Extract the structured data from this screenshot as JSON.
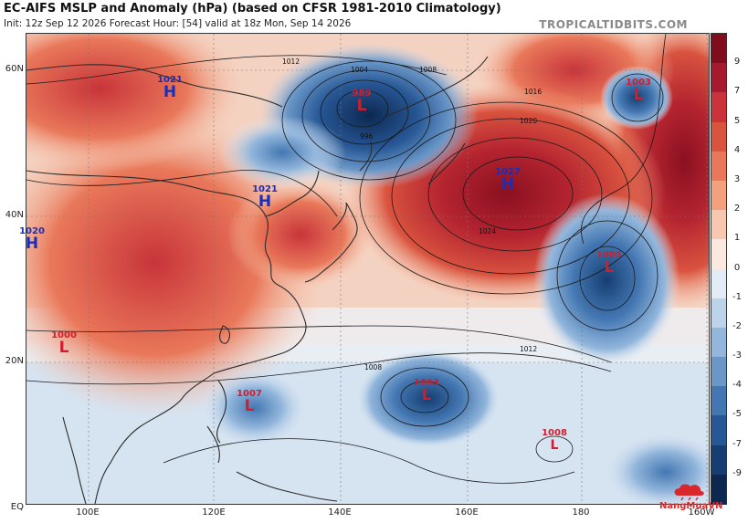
{
  "header": {
    "title": "EC-AIFS MSLP and Anomaly (hPa) (based on CFSR 1981-2010 Climatology)",
    "subtitle": "Init: 12z Sep 12 2026   Forecast Hour: [54]   valid at 18z Mon, Sep 14 2026",
    "brand": "TROPICALTIDBITS.COM"
  },
  "map": {
    "lat_labels": [
      "60N",
      "40N",
      "20N",
      "EQ"
    ],
    "lon_labels": [
      "100E",
      "120E",
      "140E",
      "160E",
      "180",
      "160W"
    ],
    "isobar_labels": [
      "1012",
      "1004",
      "1008",
      "1016",
      "1020",
      "1024",
      "996",
      "1012",
      "1008"
    ],
    "colors": {
      "positive": "#c0392b",
      "negative": "#1f5fa0",
      "land_outline": "#2b2b2b",
      "isobar": "#1a1a1a"
    }
  },
  "pressure_systems": [
    {
      "type": "H",
      "value": "1021"
    },
    {
      "type": "L",
      "value": "989"
    },
    {
      "type": "L",
      "value": "1003"
    },
    {
      "type": "H",
      "value": "1021"
    },
    {
      "type": "H",
      "value": "1027"
    },
    {
      "type": "H",
      "value": "1020"
    },
    {
      "type": "L",
      "value": "1005"
    },
    {
      "type": "L",
      "value": "1000"
    },
    {
      "type": "L",
      "value": "1007"
    },
    {
      "type": "L",
      "value": "1003"
    },
    {
      "type": "L",
      "value": "1008"
    }
  ],
  "colorbar": {
    "labels": [
      "9",
      "7",
      "5",
      "4",
      "3",
      "2",
      "1",
      "0",
      "-1",
      "-2",
      "-3",
      "-4",
      "-5",
      "-7",
      "-9"
    ],
    "colors": [
      "#7f0d1c",
      "#a6192e",
      "#c8343a",
      "#d9533f",
      "#e9785a",
      "#f2a07e",
      "#f7c8af",
      "#fbe8df",
      "#e3ecf6",
      "#bcd3ea",
      "#93b7dc",
      "#6a97c8",
      "#4477b2",
      "#275795",
      "#163e72",
      "#0c2850"
    ]
  },
  "watermark": {
    "text": "NangMuaVN"
  }
}
